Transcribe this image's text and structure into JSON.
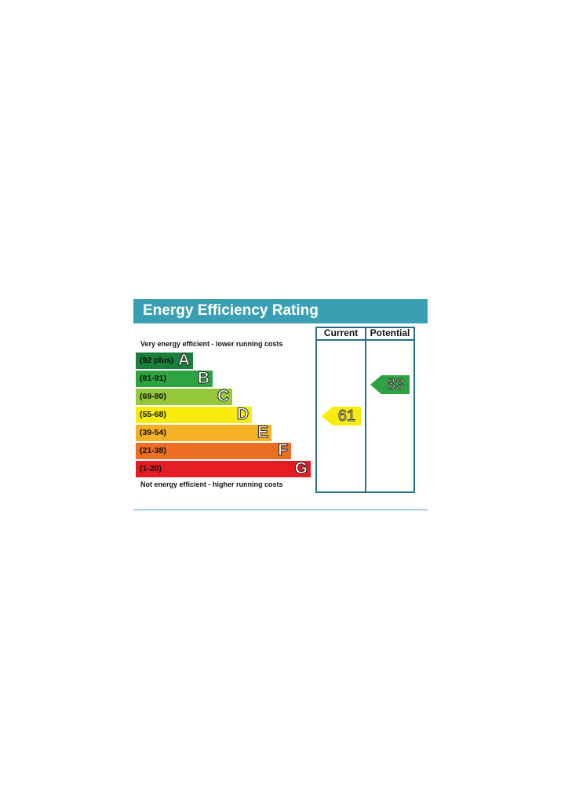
{
  "header": {
    "title": "Energy Efficiency Rating"
  },
  "captions": {
    "top": "Very energy efficient - lower running costs",
    "bottom": "Not energy efficient - higher running costs"
  },
  "columns": {
    "current": "Current",
    "potential": "Potential"
  },
  "chart_data": {
    "type": "bar",
    "title": "Energy Efficiency Rating",
    "bands": [
      {
        "letter": "A",
        "range": "(92 plus)",
        "color": "#1a7f3c"
      },
      {
        "letter": "B",
        "range": "(81-91)",
        "color": "#2ca241"
      },
      {
        "letter": "C",
        "range": "(69-80)",
        "color": "#96c83b"
      },
      {
        "letter": "D",
        "range": "(55-68)",
        "color": "#f7ec0e"
      },
      {
        "letter": "E",
        "range": "(39-54)",
        "color": "#f5b126"
      },
      {
        "letter": "F",
        "range": "(21-38)",
        "color": "#ec6d24"
      },
      {
        "letter": "G",
        "range": "(1-20)",
        "color": "#e31d23"
      }
    ],
    "current": {
      "value": 61,
      "band": "D",
      "color": "#f7ec0e"
    },
    "potential": {
      "value": 83,
      "band": "B",
      "color": "#2ca241"
    }
  }
}
